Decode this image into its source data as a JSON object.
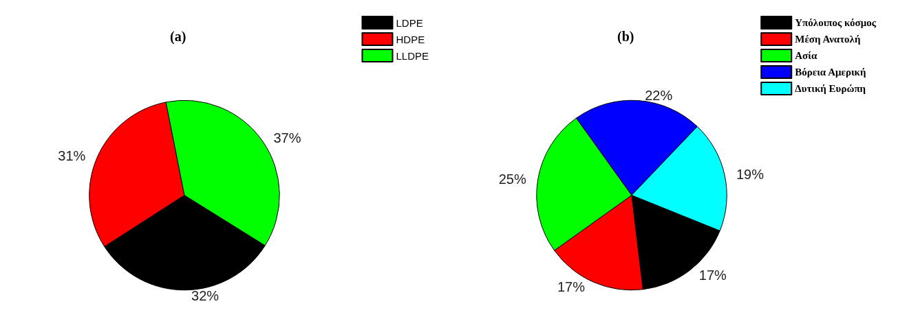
{
  "chart_data": [
    {
      "type": "pie",
      "title": "(a)",
      "categories": [
        "LDPE",
        "HDPE",
        "LLDPE"
      ],
      "values": [
        32,
        31,
        37
      ],
      "colors": [
        "#000000",
        "#ff0000",
        "#00ff00"
      ],
      "value_labels": [
        "32%",
        "31%",
        "37%"
      ],
      "legend": "top right"
    },
    {
      "type": "pie",
      "title": "(b)",
      "categories": [
        "Υπόλοιπος κόσμος",
        "Μέση Ανατολή",
        "Ασία",
        "Βόρεια Αμερική",
        "Δυτική Ευρώπη"
      ],
      "values": [
        17,
        17,
        25,
        22,
        19
      ],
      "colors": [
        "#000000",
        "#ff0000",
        "#00ff00",
        "#0000ff",
        "#00ffff"
      ],
      "value_labels": [
        "17%",
        "17%",
        "25%",
        "22%",
        "19%"
      ],
      "legend": "top right"
    }
  ]
}
